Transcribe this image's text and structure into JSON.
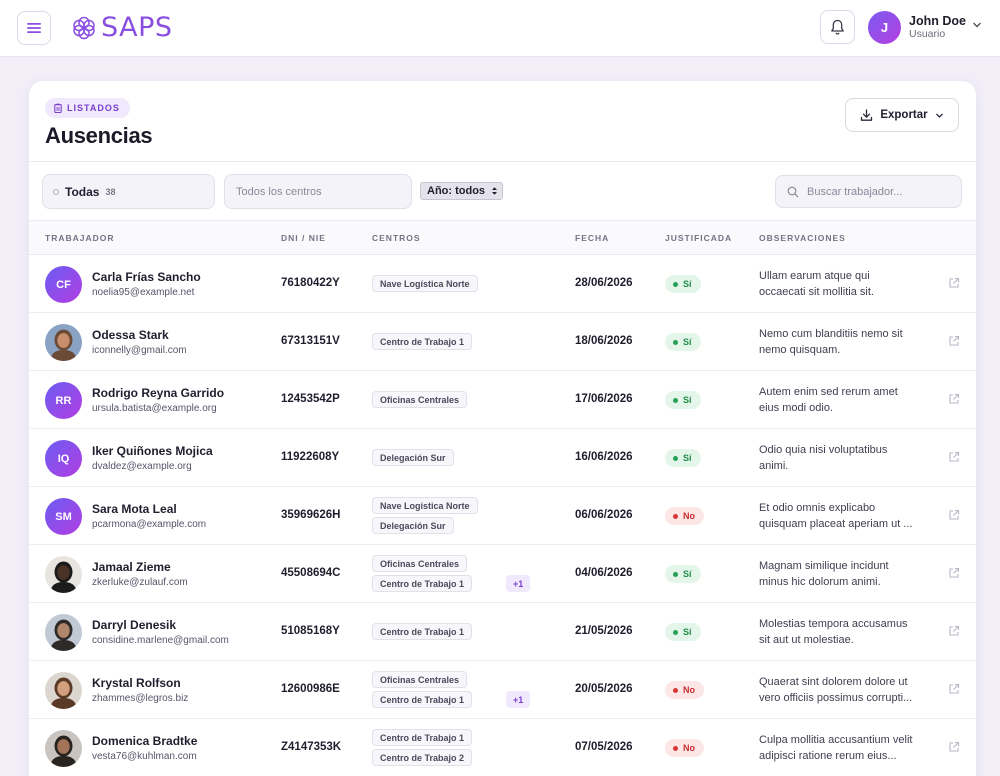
{
  "header": {
    "logo_text": "SAPS",
    "user": {
      "initial": "J",
      "name": "John Doe",
      "role": "Usuario"
    }
  },
  "page": {
    "badge": "LISTADOS",
    "title": "Ausencias",
    "export_label": "Exportar"
  },
  "filters": {
    "status_label": "Todas",
    "status_count": "38",
    "centros_placeholder": "Todos los centros",
    "year_label": "Año: todos",
    "search_placeholder": "Buscar trabajador..."
  },
  "table": {
    "columns": [
      "TRABAJADOR",
      "DNI / NIE",
      "CENTROS",
      "FECHA",
      "JUSTIFICADA",
      "OBSERVACIONES"
    ],
    "rows": [
      {
        "initials": "CF",
        "photo": false,
        "name": "Carla Frías Sancho",
        "email": "noelia95@example.net",
        "dni": "76180422Y",
        "centros": [
          "Nave Logística Norte"
        ],
        "more": "",
        "fecha": "28/06/2026",
        "justificada": "Sí",
        "obs": [
          "Ullam earum atque qui",
          "occaecati sit mollitia sit."
        ]
      },
      {
        "initials": "",
        "photo": true,
        "name": "Odessa Stark",
        "email": "iconnelly@gmail.com",
        "dni": "67313151V",
        "centros": [
          "Centro de Trabajo 1"
        ],
        "more": "",
        "fecha": "18/06/2026",
        "justificada": "Sí",
        "obs": [
          "Nemo cum blanditiis nemo sit",
          "nemo quisquam."
        ]
      },
      {
        "initials": "RR",
        "photo": false,
        "name": "Rodrigo Reyna Garrido",
        "email": "ursula.batista@example.org",
        "dni": "12453542P",
        "centros": [
          "Oficinas Centrales"
        ],
        "more": "",
        "fecha": "17/06/2026",
        "justificada": "Sí",
        "obs": [
          "Autem enim sed rerum amet",
          "eius modi odio."
        ]
      },
      {
        "initials": "IQ",
        "photo": false,
        "name": "Iker Quiñones Mojica",
        "email": "dvaldez@example.org",
        "dni": "11922608Y",
        "centros": [
          "Delegación Sur"
        ],
        "more": "",
        "fecha": "16/06/2026",
        "justificada": "Sí",
        "obs": [
          "Odio quia nisi voluptatibus",
          "animi."
        ]
      },
      {
        "initials": "SM",
        "photo": false,
        "name": "Sara Mota Leal",
        "email": "pcarmona@example.com",
        "dni": "35969626H",
        "centros": [
          "Nave Logística Norte",
          "Delegación Sur"
        ],
        "more": "",
        "fecha": "06/06/2026",
        "justificada": "No",
        "obs": [
          "Et odio omnis explicabo",
          "quisquam placeat aperiam ut ..."
        ]
      },
      {
        "initials": "",
        "photo": true,
        "name": "Jamaal Zieme",
        "email": "zkerluke@zulauf.com",
        "dni": "45508694C",
        "centros": [
          "Oficinas Centrales",
          "Centro de Trabajo 1"
        ],
        "more": "+1",
        "fecha": "04/06/2026",
        "justificada": "Sí",
        "obs": [
          "Magnam similique incidunt",
          "minus hic dolorum animi."
        ]
      },
      {
        "initials": "",
        "photo": true,
        "name": "Darryl Denesik",
        "email": "considine.marlene@gmail.com",
        "dni": "51085168Y",
        "centros": [
          "Centro de Trabajo 1"
        ],
        "more": "",
        "fecha": "21/05/2026",
        "justificada": "Sí",
        "obs": [
          "Molestias tempora accusamus",
          "sit aut ut molestiae."
        ]
      },
      {
        "initials": "",
        "photo": true,
        "name": "Krystal Rolfson",
        "email": "zhammes@legros.biz",
        "dni": "12600986E",
        "centros": [
          "Oficinas Centrales",
          "Centro de Trabajo 1"
        ],
        "more": "+1",
        "fecha": "20/05/2026",
        "justificada": "No",
        "obs": [
          "Quaerat sint dolorem dolore ut",
          "vero officiis possimus corrupti..."
        ]
      },
      {
        "initials": "",
        "photo": true,
        "name": "Domenica Bradtke",
        "email": "vesta76@kuhlman.com",
        "dni": "Z4147353K",
        "centros": [
          "Centro de Trabajo 1",
          "Centro de Trabajo 2"
        ],
        "more": "",
        "fecha": "07/05/2026",
        "justificada": "No",
        "obs": [
          "Culpa mollitia accusantium velit",
          "adipisci ratione rerum eius..."
        ]
      }
    ]
  }
}
